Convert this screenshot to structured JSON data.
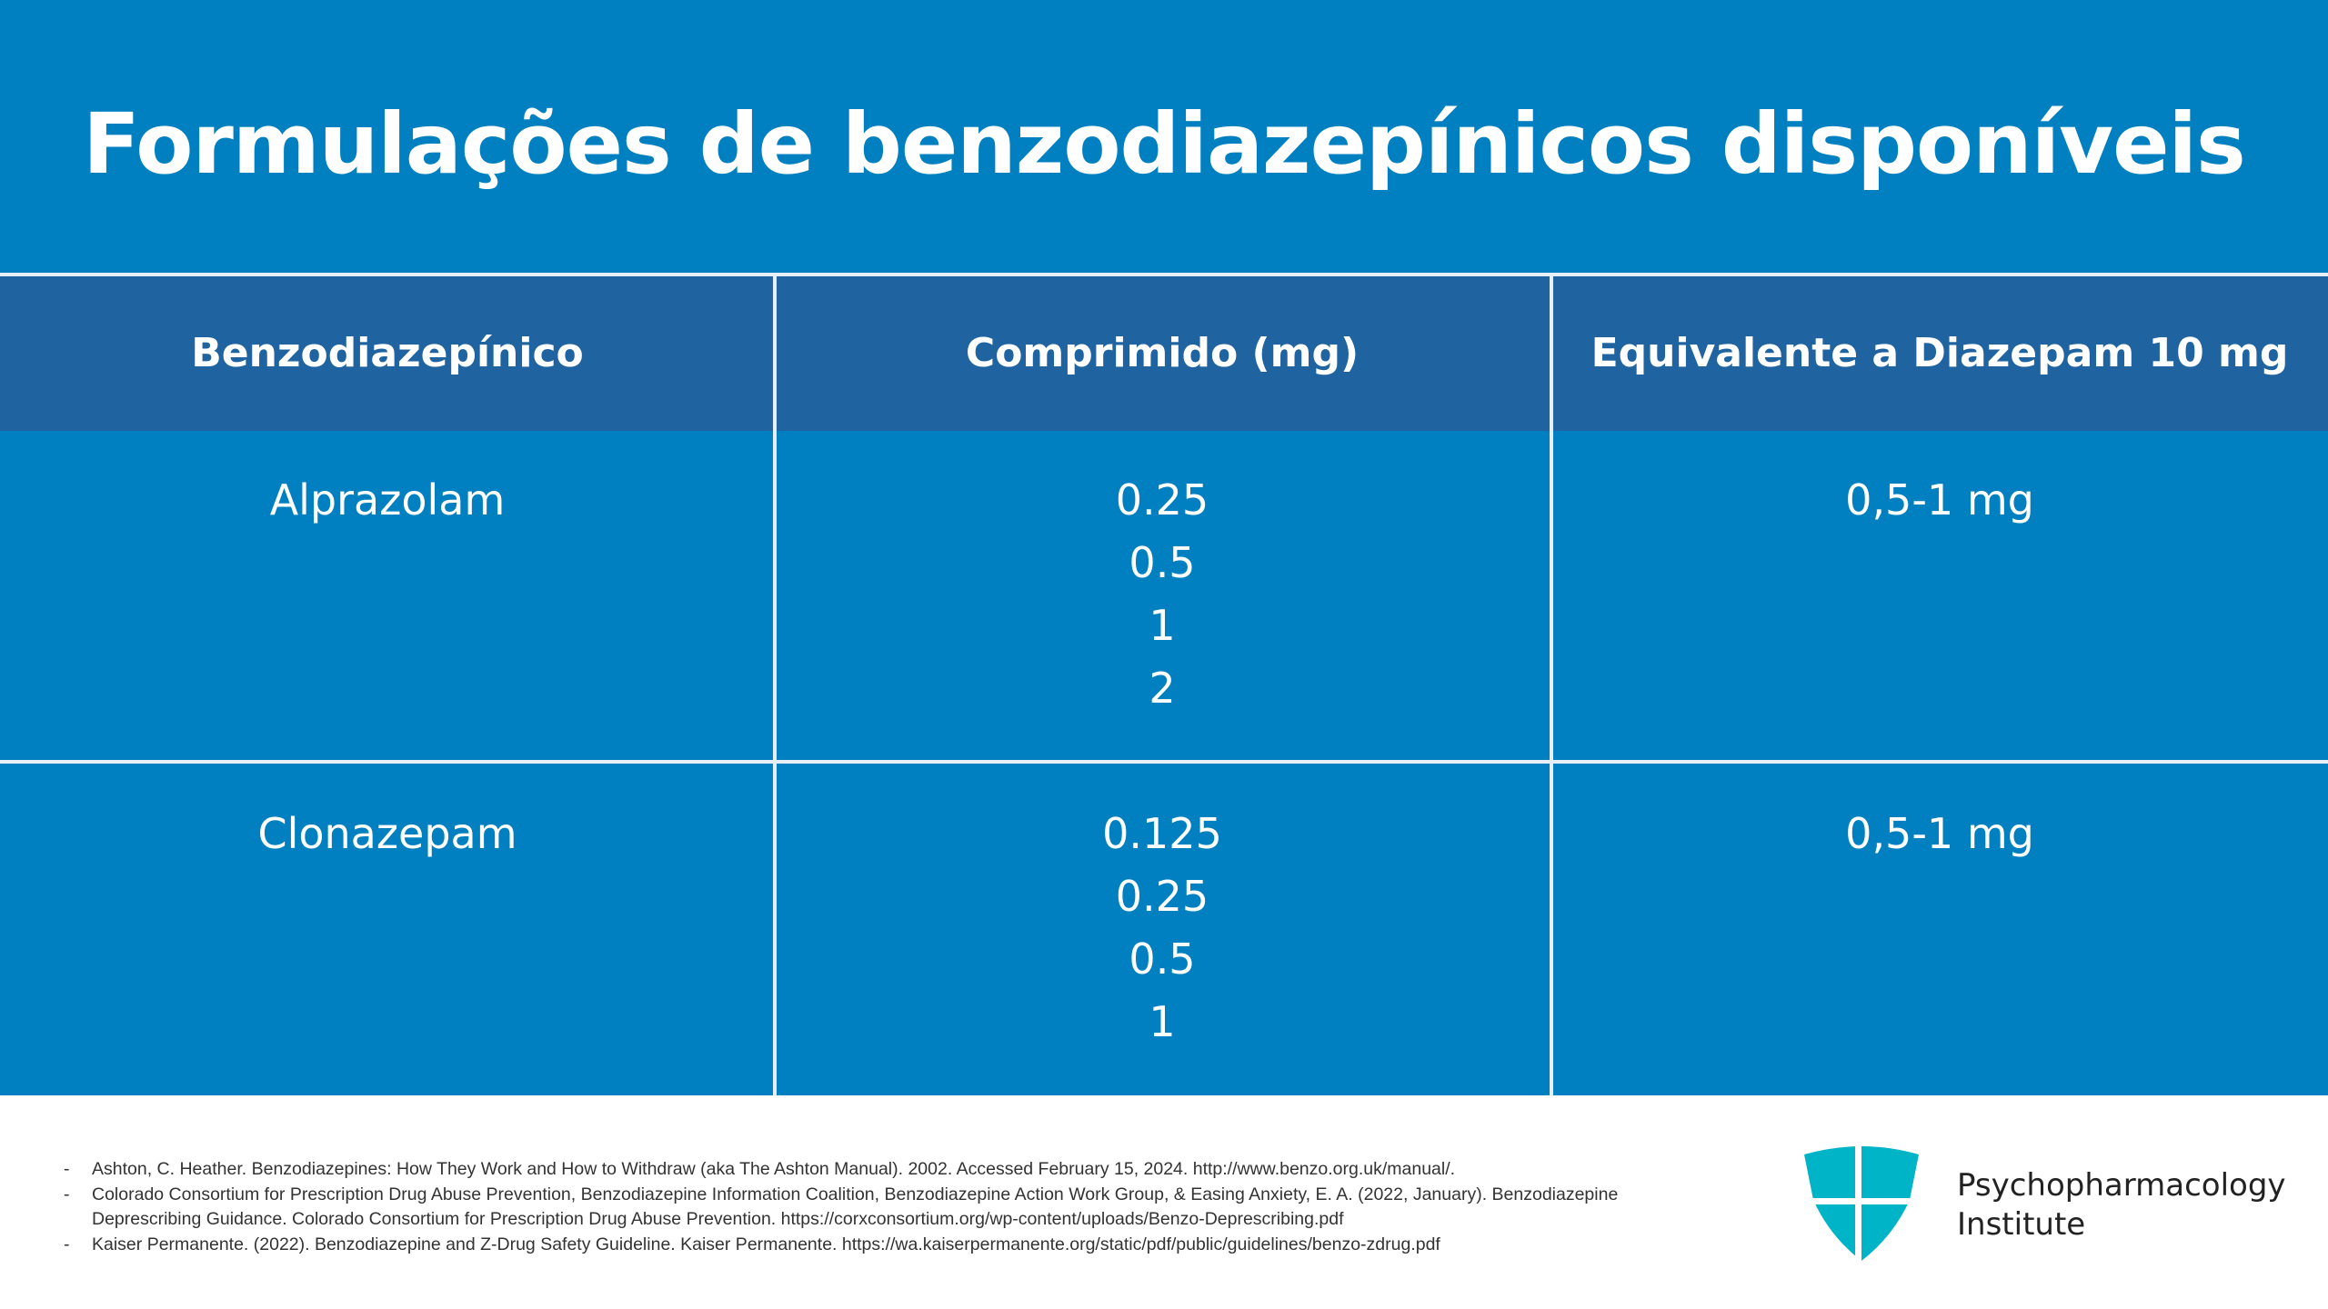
{
  "title": "Formulações de benzodiazepínicos disponíveis",
  "table": {
    "headers": [
      "Benzodiazepínico",
      "Comprimido (mg)",
      "Equivalente a Diazepam 10 mg"
    ],
    "rows": [
      {
        "name": "Alprazolam",
        "tablets": [
          "0.25",
          "0.5",
          "1",
          "2"
        ],
        "equivalent": "0,5-1 mg"
      },
      {
        "name": "Clonazepam",
        "tablets": [
          "0.125",
          "0.25",
          "0.5",
          "1"
        ],
        "equivalent": "0,5-1 mg"
      }
    ]
  },
  "references": [
    "Ashton, C. Heather. Benzodiazepines: How They Work and How to Withdraw (aka The Ashton Manual). 2002. Accessed February 15, 2024. http://www.benzo.org.uk/manual/.",
    "Colorado Consortium for Prescription Drug Abuse Prevention, Benzodiazepine Information Coalition, Benzodiazepine Action Work Group, & Easing Anxiety, E. A. (2022, January). Benzodiazepine Deprescribing Guidance. Colorado Consortium for Prescription Drug Abuse Prevention. https://corxconsortium.org/wp-content/uploads/Benzo-Deprescribing.pdf",
    "Kaiser Permanente. (2022). Benzodiazepine and Z-Drug Safety Guideline. Kaiser Permanente. https://wa.kaiserpermanente.org/static/pdf/public/guidelines/benzo-zdrug.pdf"
  ],
  "logo": {
    "line1": "Psychopharmacology",
    "line2": "Institute",
    "icon": "shield-cross-icon",
    "color": "#00b4c8"
  },
  "colors": {
    "background": "#0080c0",
    "header": "#1f64a0"
  }
}
